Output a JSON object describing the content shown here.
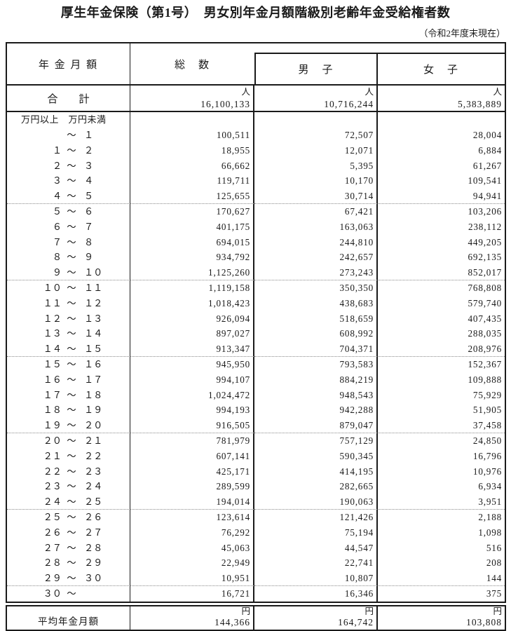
{
  "title": "厚生年金保険（第1号）　男女別年金月額階級別老齢年金受給権者数",
  "subtitle": "（令和2年度末現在）",
  "table": {
    "col_headers": {
      "amount": "年 金 月 額",
      "total": "総　数",
      "male": "男　子",
      "female": "女　子"
    },
    "unit_person": "人",
    "unit_yen": "円",
    "range_tilde": "～",
    "range_header": "万円以上　万円未満",
    "total_row": {
      "label": "合　　計",
      "total": "16,100,133",
      "male": "10,716,244",
      "female": "5,383,889"
    },
    "rows": [
      {
        "from": "",
        "to": "１",
        "total": "100,511",
        "male": "72,507",
        "female": "28,004"
      },
      {
        "from": "１",
        "to": "２",
        "total": "18,955",
        "male": "12,071",
        "female": "6,884"
      },
      {
        "from": "２",
        "to": "３",
        "total": "66,662",
        "male": "5,395",
        "female": "61,267"
      },
      {
        "from": "３",
        "to": "４",
        "total": "119,711",
        "male": "10,170",
        "female": "109,541"
      },
      {
        "from": "４",
        "to": "５",
        "total": "125,655",
        "male": "30,714",
        "female": "94,941",
        "group_end": true
      },
      {
        "from": "５",
        "to": "６",
        "total": "170,627",
        "male": "67,421",
        "female": "103,206"
      },
      {
        "from": "６",
        "to": "７",
        "total": "401,175",
        "male": "163,063",
        "female": "238,112"
      },
      {
        "from": "７",
        "to": "８",
        "total": "694,015",
        "male": "244,810",
        "female": "449,205"
      },
      {
        "from": "８",
        "to": "９",
        "total": "934,792",
        "male": "242,657",
        "female": "692,135"
      },
      {
        "from": "９",
        "to": "１０",
        "total": "1,125,260",
        "male": "273,243",
        "female": "852,017",
        "group_end": true
      },
      {
        "from": "１０",
        "to": "１１",
        "total": "1,119,158",
        "male": "350,350",
        "female": "768,808"
      },
      {
        "from": "１１",
        "to": "１２",
        "total": "1,018,423",
        "male": "438,683",
        "female": "579,740"
      },
      {
        "from": "１２",
        "to": "１３",
        "total": "926,094",
        "male": "518,659",
        "female": "407,435"
      },
      {
        "from": "１３",
        "to": "１４",
        "total": "897,027",
        "male": "608,992",
        "female": "288,035"
      },
      {
        "from": "１４",
        "to": "１５",
        "total": "913,347",
        "male": "704,371",
        "female": "208,976",
        "group_end": true
      },
      {
        "from": "１５",
        "to": "１６",
        "total": "945,950",
        "male": "793,583",
        "female": "152,367"
      },
      {
        "from": "１６",
        "to": "１７",
        "total": "994,107",
        "male": "884,219",
        "female": "109,888"
      },
      {
        "from": "１７",
        "to": "１８",
        "total": "1,024,472",
        "male": "948,543",
        "female": "75,929"
      },
      {
        "from": "１８",
        "to": "１９",
        "total": "994,193",
        "male": "942,288",
        "female": "51,905"
      },
      {
        "from": "１９",
        "to": "２０",
        "total": "916,505",
        "male": "879,047",
        "female": "37,458",
        "group_end": true
      },
      {
        "from": "２０",
        "to": "２１",
        "total": "781,979",
        "male": "757,129",
        "female": "24,850"
      },
      {
        "from": "２１",
        "to": "２２",
        "total": "607,141",
        "male": "590,345",
        "female": "16,796"
      },
      {
        "from": "２２",
        "to": "２３",
        "total": "425,171",
        "male": "414,195",
        "female": "10,976"
      },
      {
        "from": "２３",
        "to": "２４",
        "total": "289,599",
        "male": "282,665",
        "female": "6,934"
      },
      {
        "from": "２４",
        "to": "２５",
        "total": "194,014",
        "male": "190,063",
        "female": "3,951",
        "group_end": true
      },
      {
        "from": "２５",
        "to": "２６",
        "total": "123,614",
        "male": "121,426",
        "female": "2,188"
      },
      {
        "from": "２６",
        "to": "２７",
        "total": "76,292",
        "male": "75,194",
        "female": "1,098"
      },
      {
        "from": "２７",
        "to": "２８",
        "total": "45,063",
        "male": "44,547",
        "female": "516"
      },
      {
        "from": "２８",
        "to": "２９",
        "total": "22,949",
        "male": "22,741",
        "female": "208"
      },
      {
        "from": "２９",
        "to": "３０",
        "total": "10,951",
        "male": "10,807",
        "female": "144",
        "group_end": true
      },
      {
        "from": "３０",
        "to": "",
        "total": "16,721",
        "male": "16,346",
        "female": "375"
      }
    ],
    "average_row": {
      "label": "平均年金月額",
      "total": "144,366",
      "male": "164,742",
      "female": "103,808"
    }
  }
}
